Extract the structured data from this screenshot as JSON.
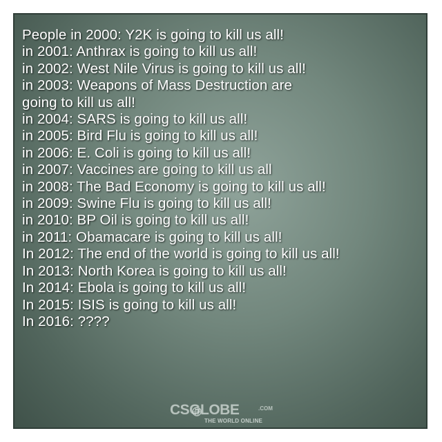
{
  "meme": {
    "lines": [
      "People in 2000: Y2K is going to kill us all!",
      "in 2001: Anthrax is going to kill us all!",
      "in 2002: West Nile Virus is going to kill us all!",
      "in 2003: Weapons of Mass Destruction are",
      "going to kill us all!",
      "in 2004: SARS is going to kill us all!",
      "in 2005: Bird Flu is going to kill us all!",
      "in 2006: E. Coli is going to kill us all!",
      "in 2007: Vaccines are going to kill us all",
      "in 2008: The Bad Economy is going to kill us all!",
      "in 2009: Swine Flu is going to kill us all!",
      "in 2010: BP Oil is going to kill us all!",
      "in 2011: Obamacare is going to kill us all!",
      "In 2012: The end of the world is going to kill us all!",
      "In 2013: North Korea is going to kill us all!",
      "In 2014: Ebola is going to kill us all!",
      "In 2015: ISIS is going to kill us all!",
      "In 2016: ????"
    ]
  },
  "watermark": {
    "brand": "CSGLOBE",
    "domain": ".COM",
    "tagline": "THE WORLD ONLINE",
    "icon": "globe-icon"
  },
  "colors": {
    "panel": "#72877d",
    "text": "#ffffff",
    "border": "#ffffff"
  }
}
